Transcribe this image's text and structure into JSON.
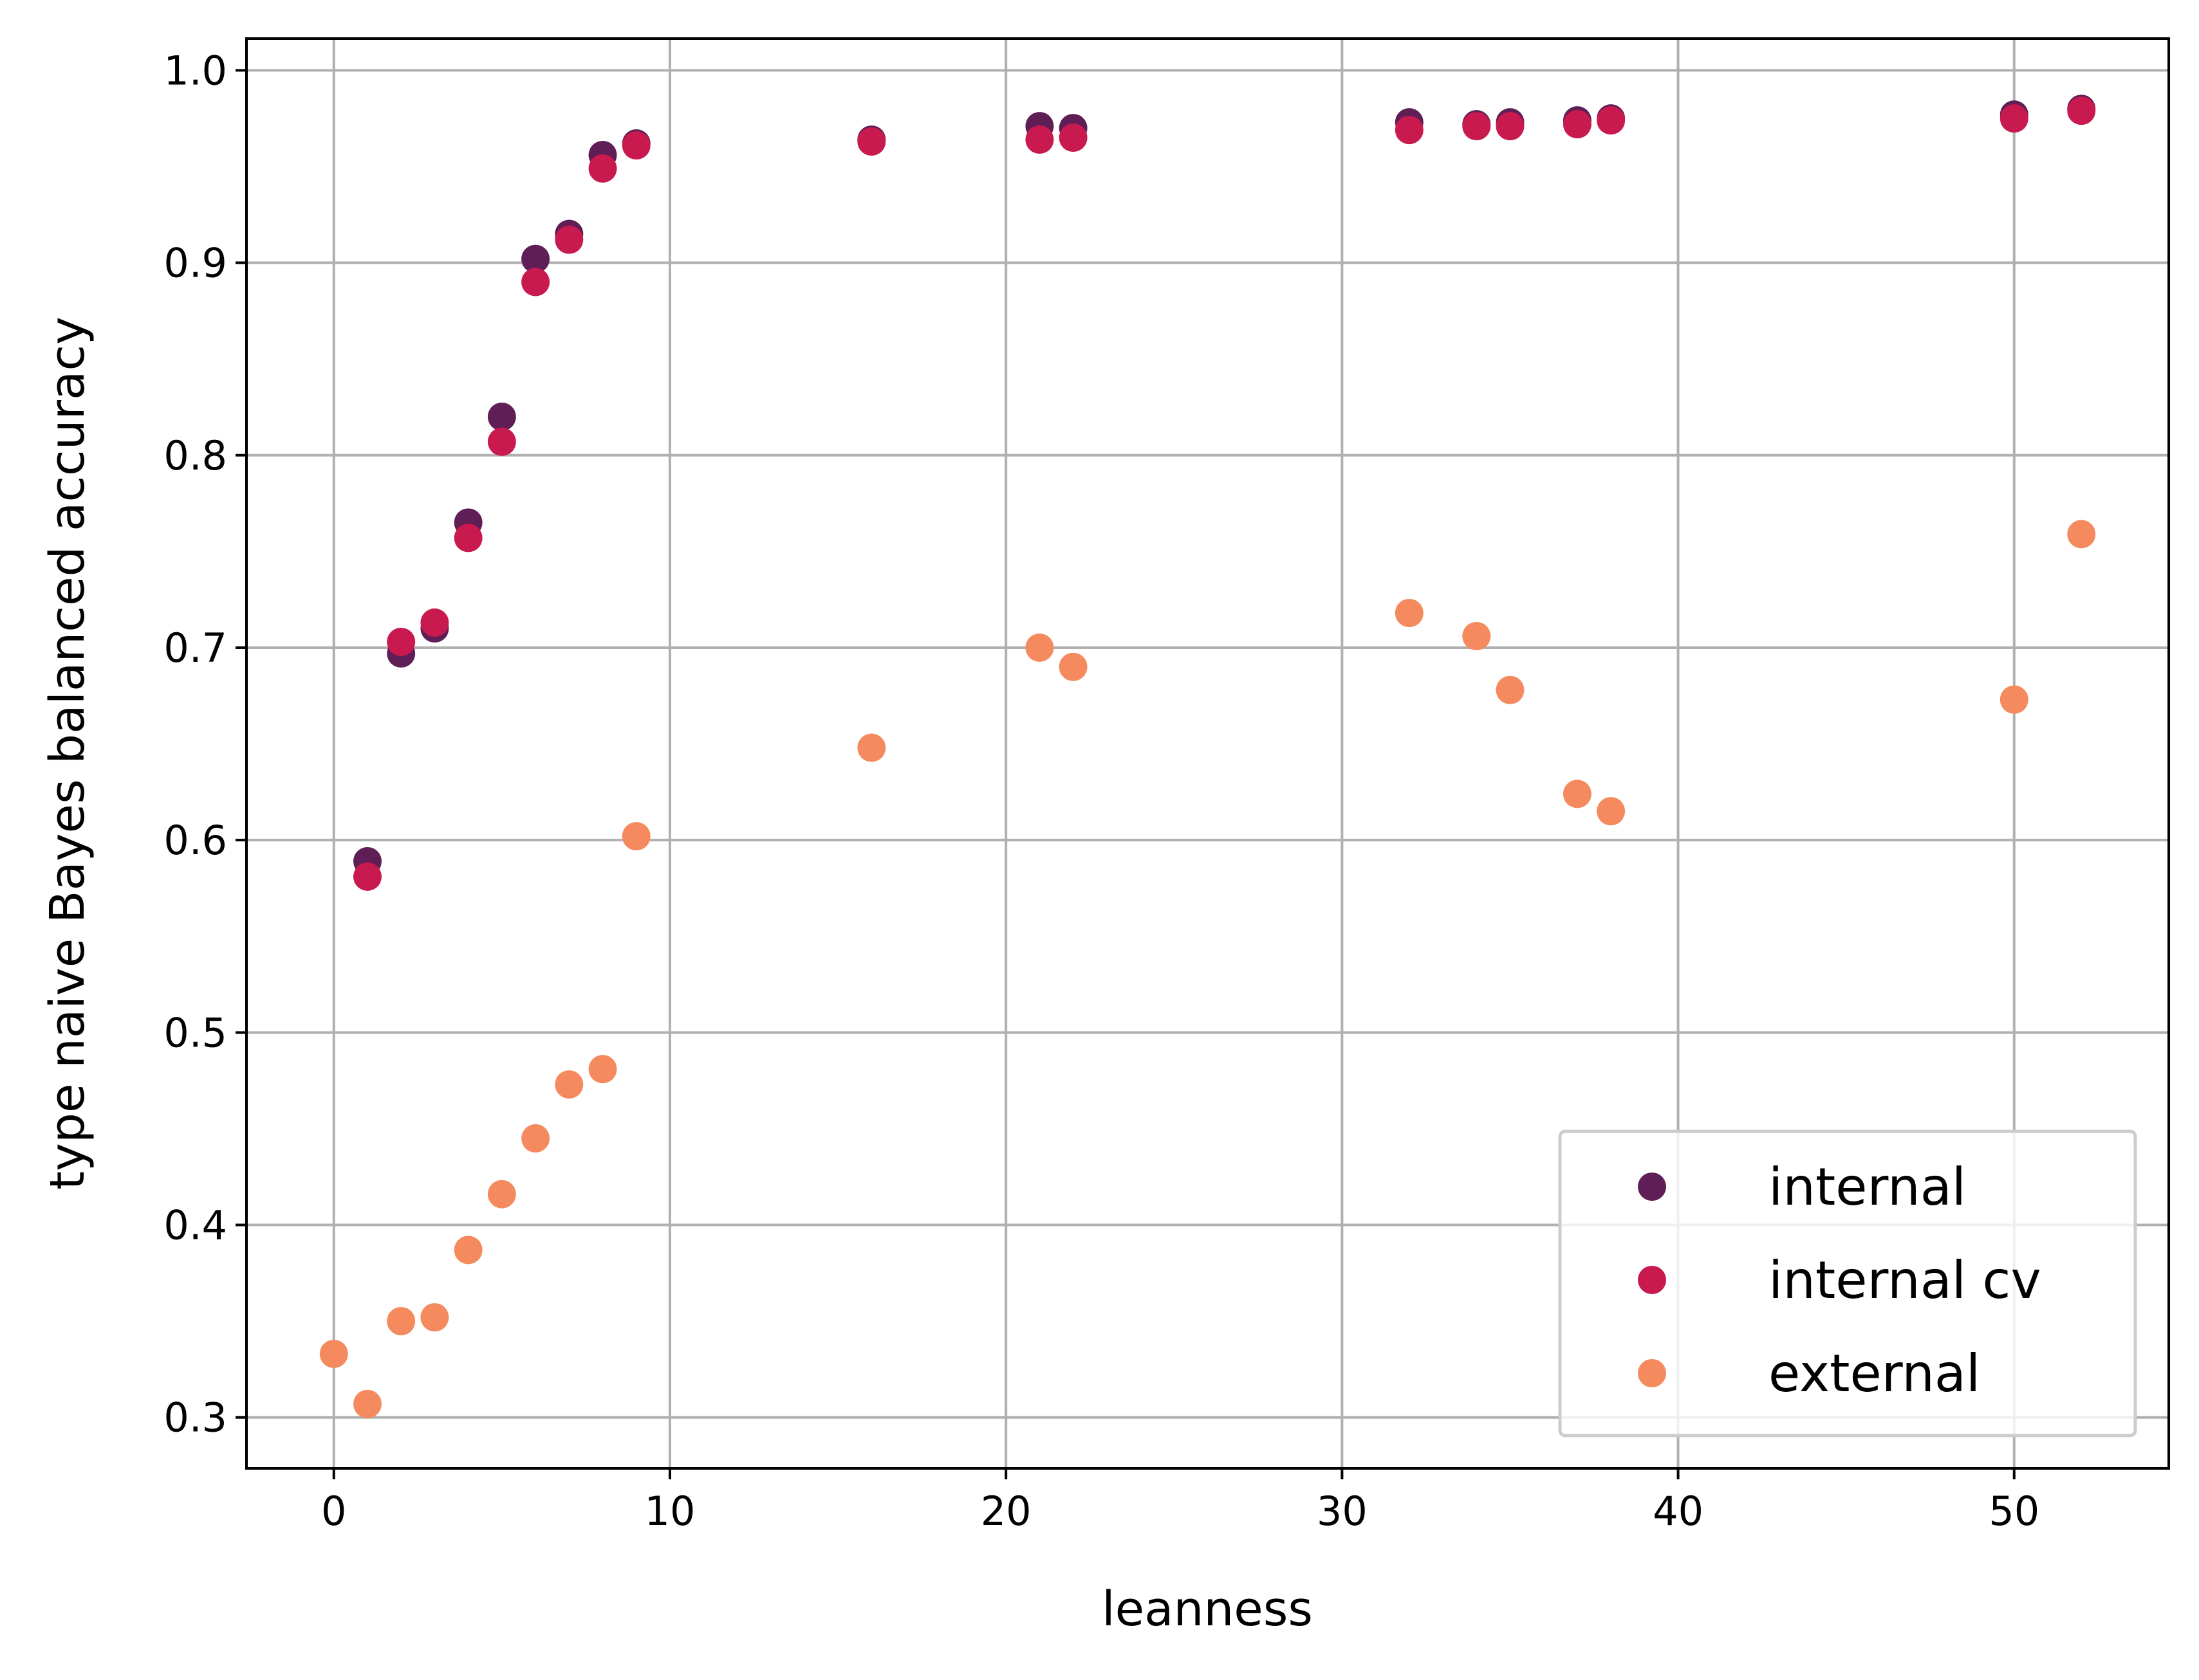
{
  "chart_data": {
    "type": "scatter",
    "xlabel": "leanness",
    "ylabel": "type naive Bayes balanced accuracy",
    "xlim": [
      -2.6,
      54.6
    ],
    "ylim": [
      0.2735,
      1.0165
    ],
    "xticks": [
      0,
      10,
      20,
      30,
      40,
      50
    ],
    "yticks": [
      0.3,
      0.4,
      0.5,
      0.6,
      0.7,
      0.8,
      0.9,
      1.0
    ],
    "xtick_labels": [
      "0",
      "10",
      "20",
      "30",
      "40",
      "50"
    ],
    "ytick_labels": [
      "0.3",
      "0.4",
      "0.5",
      "0.6",
      "0.7",
      "0.8",
      "0.9",
      "1.0"
    ],
    "grid": true,
    "legend_position": "lower-right",
    "series": [
      {
        "name": "internal",
        "color": "#5f1e55",
        "x": [
          1,
          2,
          3,
          4,
          5,
          6,
          7,
          8,
          9,
          16,
          21,
          22,
          32,
          34,
          35,
          37,
          38,
          50,
          52
        ],
        "y": [
          0.589,
          0.697,
          0.71,
          0.765,
          0.82,
          0.902,
          0.915,
          0.956,
          0.962,
          0.964,
          0.971,
          0.97,
          0.973,
          0.972,
          0.973,
          0.974,
          0.975,
          0.977,
          0.98
        ]
      },
      {
        "name": "internal cv",
        "color": "#c91a4f",
        "x": [
          1,
          2,
          3,
          4,
          5,
          6,
          7,
          8,
          9,
          16,
          21,
          22,
          32,
          34,
          35,
          37,
          38,
          50,
          52
        ],
        "y": [
          0.581,
          0.703,
          0.713,
          0.757,
          0.807,
          0.89,
          0.912,
          0.949,
          0.961,
          0.963,
          0.964,
          0.965,
          0.969,
          0.971,
          0.971,
          0.972,
          0.974,
          0.975,
          0.979
        ]
      },
      {
        "name": "external",
        "color": "#f48a5e",
        "x": [
          0,
          1,
          2,
          3,
          4,
          5,
          6,
          7,
          8,
          9,
          16,
          21,
          22,
          32,
          34,
          35,
          37,
          38,
          50,
          52
        ],
        "y": [
          0.333,
          0.307,
          0.35,
          0.352,
          0.387,
          0.416,
          0.445,
          0.473,
          0.481,
          0.602,
          0.648,
          0.7,
          0.69,
          0.718,
          0.706,
          0.678,
          0.624,
          0.615,
          0.673,
          0.759
        ]
      }
    ]
  }
}
